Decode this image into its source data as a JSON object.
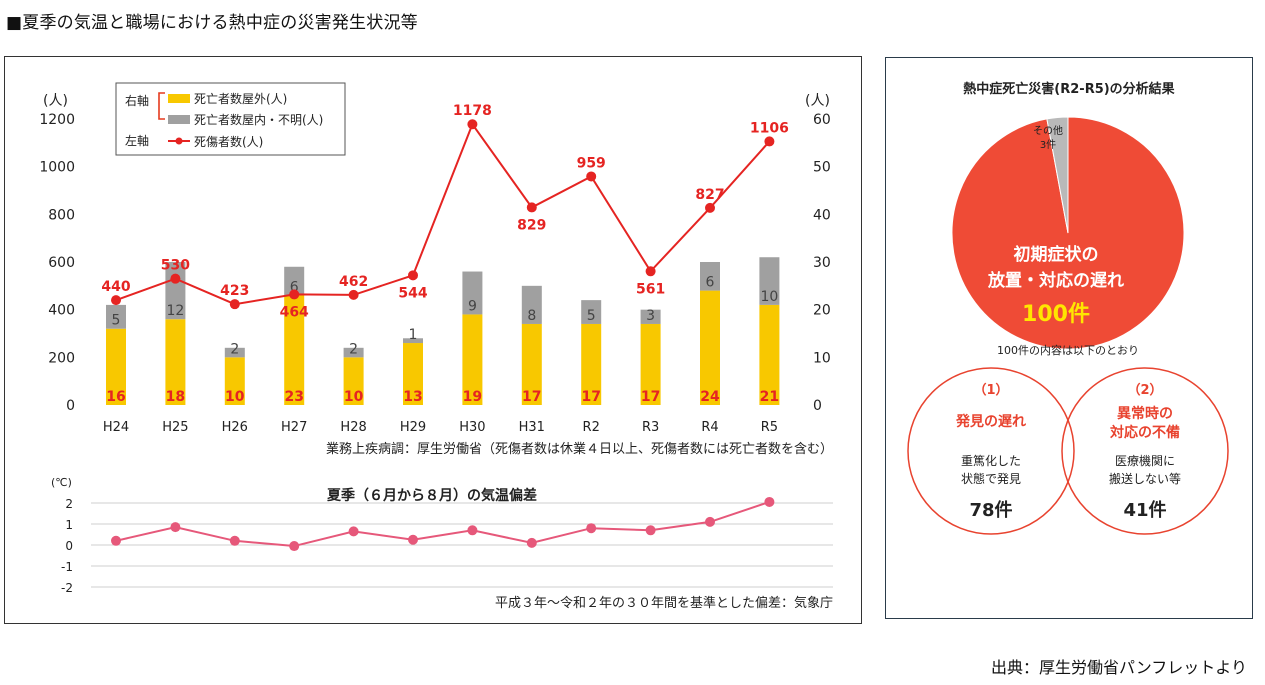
{
  "page": {
    "title": "■夏季の気温と職場における熱中症の災害発生状況等",
    "source": "出典：厚生労働省パンフレットより"
  },
  "chart_data": [
    {
      "type": "bar",
      "categories": [
        "H24",
        "H25",
        "H26",
        "H27",
        "H28",
        "H29",
        "H30",
        "H31",
        "R2",
        "R3",
        "R4",
        "R5"
      ],
      "left_unit": "(人)",
      "right_unit": "(人)",
      "left_ylim": [
        0,
        1200
      ],
      "left_ticks": [
        "0",
        "200",
        "400",
        "600",
        "800",
        "1000",
        "1200"
      ],
      "right_ylim": [
        0,
        60
      ],
      "right_ticks": [
        "0",
        "10",
        "20",
        "30",
        "40",
        "50",
        "60"
      ],
      "legend": {
        "right_axis_label": "右軸",
        "left_axis_label": "左軸",
        "outdoor": "死亡者数屋外(人)",
        "indoor": "死亡者数屋内・不明(人)",
        "casualties": "死傷者数(人)"
      },
      "colors": {
        "outdoor": "#f8c800",
        "indoor": "#a0a0a0",
        "casualties": "#e52422"
      },
      "outdoor_deaths": [
        16,
        18,
        10,
        23,
        10,
        13,
        19,
        17,
        17,
        17,
        24,
        21
      ],
      "outdoor_labels": [
        "16",
        "18",
        "10",
        "23",
        "10",
        "13",
        "19",
        "17",
        "17",
        "17",
        "24",
        "21"
      ],
      "indoor_deaths": [
        5,
        12,
        2,
        6,
        2,
        1,
        9,
        8,
        5,
        3,
        6,
        10
      ],
      "indoor_labels": [
        "5",
        "12",
        "2",
        "6",
        "2",
        "1",
        "9",
        "8",
        "5",
        "3",
        "6",
        "10"
      ],
      "casualties": [
        440,
        530,
        423,
        464,
        462,
        544,
        1178,
        829,
        959,
        561,
        827,
        1106
      ],
      "casualty_labels": [
        "440",
        "530",
        "423",
        "464",
        "462",
        "544",
        "1178",
        "829",
        "959",
        "561",
        "827",
        "1106"
      ],
      "note": "業務上疾病調：厚生労働省（死傷者数は休業４日以上、死傷者数には死亡者数を含む）"
    },
    {
      "type": "line",
      "title": "夏季（６月から８月）の気温偏差",
      "y_unit": "(℃)",
      "ylim": [
        -2,
        2
      ],
      "y_ticks": [
        "2",
        "1",
        "0",
        "-1",
        "-2"
      ],
      "values": [
        0.2,
        0.85,
        0.2,
        -0.05,
        0.65,
        0.25,
        0.7,
        0.1,
        0.8,
        0.7,
        1.1,
        2.05
      ],
      "color": "#e6587a",
      "note": "平成３年～令和２年の３０年間を基準とした偏差：気象庁"
    }
  ],
  "analysis": {
    "title": "熱中症死亡災害(R2-R5)の分析結果",
    "pie": {
      "type": "pie",
      "slices": [
        {
          "name": "初期症状の放置・対応の遅れ",
          "value": 100,
          "color": "#ef4b36"
        },
        {
          "name": "その他",
          "value": 3,
          "color": "#b9b9b9"
        }
      ],
      "main_line1": "初期症状の",
      "main_line2": "放置・対応の遅れ",
      "main_count": "100件",
      "other_line1": "その他",
      "other_line2": "3件"
    },
    "breakdown_label": "100件の内容は以下のとおり",
    "circles": [
      {
        "num": "（1）",
        "title_line1": "発見の遅れ",
        "title_line2": "",
        "desc_line1": "重篤化した",
        "desc_line2": "状態で発見",
        "count": "78件"
      },
      {
        "num": "（2）",
        "title_line1": "異常時の",
        "title_line2": "対応の不備",
        "desc_line1": "医療機関に",
        "desc_line2": "搬送しない等",
        "count": "41件"
      }
    ],
    "accent": "#e8432f"
  }
}
